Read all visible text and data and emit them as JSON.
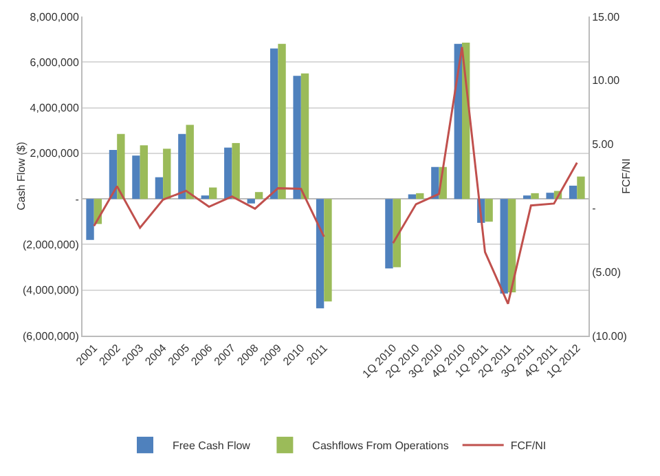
{
  "chart_data": {
    "type": "bar",
    "categories": [
      "2001",
      "2002",
      "2003",
      "2004",
      "2005",
      "2006",
      "2007",
      "2008",
      "2009",
      "2010",
      "2011",
      null,
      null,
      "1Q 2010",
      "2Q 2010",
      "3Q 2010",
      "4Q 2010",
      "1Q 2011",
      "2Q 2011",
      "3Q 2011",
      "4Q 2011",
      "1Q 2012"
    ],
    "series": [
      {
        "name": "Free Cash Flow",
        "color": "#4f81bd",
        "values": [
          -1800000,
          2150000,
          1900000,
          950000,
          2850000,
          150000,
          2250000,
          -200000,
          6600000,
          5400000,
          -4800000,
          null,
          null,
          -3050000,
          200000,
          1400000,
          6800000,
          -1050000,
          -4150000,
          150000,
          270000,
          580000
        ]
      },
      {
        "name": "Cashflows From Operations",
        "color": "#9bbb59",
        "values": [
          -1100000,
          2850000,
          2350000,
          2200000,
          3250000,
          500000,
          2450000,
          300000,
          6800000,
          5500000,
          -4500000,
          null,
          null,
          -3000000,
          250000,
          1400000,
          6850000,
          -1000000,
          -4100000,
          250000,
          350000,
          980000
        ]
      },
      {
        "name": "FCF/NI",
        "type": "line",
        "axis": "y2",
        "color": "#c0504d",
        "marker": "none",
        "values": [
          -1.4,
          1.7,
          -1.55,
          0.65,
          1.35,
          0.1,
          0.9,
          -0.05,
          1.55,
          1.5,
          -2.25,
          null,
          null,
          -2.75,
          0.3,
          1.1,
          12.6,
          -3.45,
          -7.5,
          0.2,
          0.35,
          3.55
        ]
      }
    ],
    "ylabel": "Cash Flow ($)",
    "y2label": "FCF/NI",
    "ylim": [
      -6000000,
      8000000
    ],
    "yticks": [
      {
        "value": -6000000,
        "label": "(6,000,000)"
      },
      {
        "value": -4000000,
        "label": "(4,000,000)"
      },
      {
        "value": -2000000,
        "label": "(2,000,000)"
      },
      {
        "value": 0,
        "label": "-"
      },
      {
        "value": 2000000,
        "label": "2,000,000"
      },
      {
        "value": 4000000,
        "label": "4,000,000"
      },
      {
        "value": 6000000,
        "label": "6,000,000"
      },
      {
        "value": 8000000,
        "label": "8,000,000"
      }
    ],
    "y2lim": [
      -10,
      15
    ],
    "y2ticks": [
      {
        "value": -10,
        "label": "(10.00)"
      },
      {
        "value": -5,
        "label": "(5.00)"
      },
      {
        "value": 0,
        "label": "-"
      },
      {
        "value": 5,
        "label": "5.00"
      },
      {
        "value": 10,
        "label": "10.00"
      },
      {
        "value": 15,
        "label": "15.00"
      }
    ],
    "grid": "y",
    "legend": "bottom"
  }
}
